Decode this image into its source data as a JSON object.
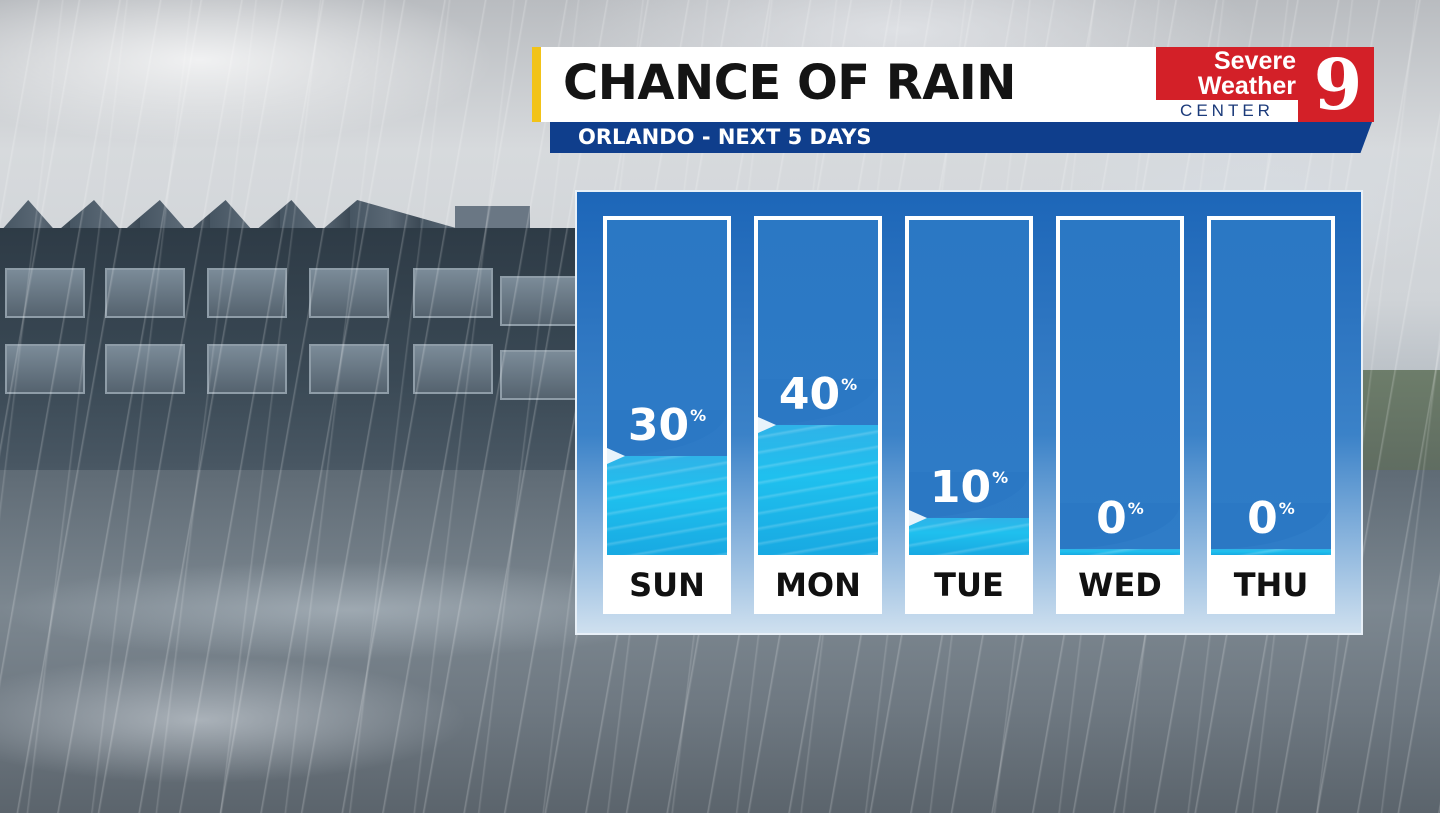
{
  "header": {
    "title": "CHANCE OF RAIN",
    "subtitle": "ORLANDO - NEXT 5 DAYS"
  },
  "logo": {
    "line1": "Severe",
    "line2": "Weather",
    "line3": "CENTER",
    "channel": "9"
  },
  "colors": {
    "accent_yellow": "#f2c318",
    "banner_blue": "#0f3e8c",
    "logo_red": "#d32028",
    "panel_blue": "#2b78c4",
    "rain_fill": "#1fc0ee"
  },
  "chart_data": {
    "type": "bar",
    "title": "CHANCE OF RAIN",
    "subtitle": "ORLANDO - NEXT 5 DAYS",
    "unit": "%",
    "ylim": [
      0,
      100
    ],
    "categories": [
      "SUN",
      "MON",
      "TUE",
      "WED",
      "THU"
    ],
    "values": [
      30,
      40,
      10,
      0,
      0
    ],
    "value_labels": [
      "30",
      "40",
      "10",
      "0",
      "0"
    ]
  }
}
